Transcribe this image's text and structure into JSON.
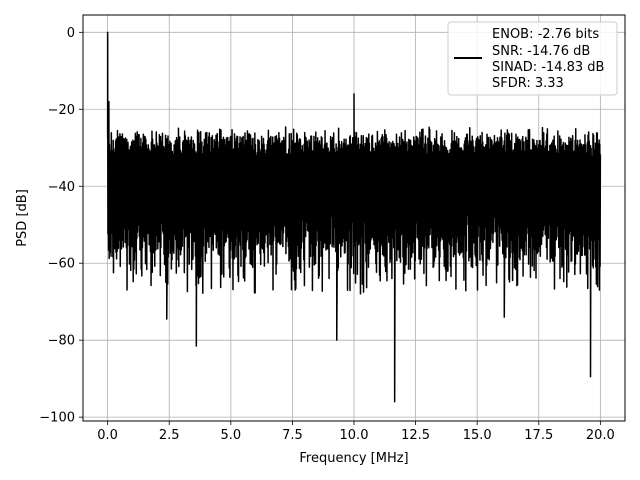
{
  "chart_data": {
    "type": "line",
    "xlabel": "Frequency [MHz]",
    "ylabel": "PSD [dB]",
    "xlim": [
      -1,
      21
    ],
    "ylim": [
      -101,
      4.5
    ],
    "xticks": [
      0.0,
      2.5,
      5.0,
      7.5,
      10.0,
      12.5,
      15.0,
      17.5,
      20.0
    ],
    "xtick_labels": [
      "0.0",
      "2.5",
      "5.0",
      "7.5",
      "10.0",
      "12.5",
      "15.0",
      "17.5",
      "20.0"
    ],
    "yticks": [
      0,
      -20,
      -40,
      -60,
      -80,
      -100
    ],
    "ytick_labels": [
      "0",
      "−20",
      "−40",
      "−60",
      "−80",
      "−100"
    ],
    "grid": true,
    "legend": {
      "position": "top-right",
      "lines": [
        "ENOB: -2.76 bits",
        "SNR: -14.76 dB",
        "SINAD: -14.83 dB",
        "SFDR: 3.33"
      ]
    },
    "series": [
      {
        "color": "#000000",
        "x_range": [
          0,
          20
        ],
        "noise_band": {
          "upper_mean": -27,
          "lower_mean": -52,
          "floor_min": -68
        },
        "peaks": [
          {
            "x": 0.0,
            "y": 0
          },
          {
            "x": 0.05,
            "y": -18
          },
          {
            "x": 10.0,
            "y": -16
          }
        ],
        "dips": [
          {
            "x": 2.4,
            "y": -74.5
          },
          {
            "x": 3.6,
            "y": -81.5
          },
          {
            "x": 9.3,
            "y": -80
          },
          {
            "x": 11.65,
            "y": -96
          },
          {
            "x": 16.1,
            "y": -74
          },
          {
            "x": 19.6,
            "y": -89.5
          }
        ]
      }
    ]
  }
}
